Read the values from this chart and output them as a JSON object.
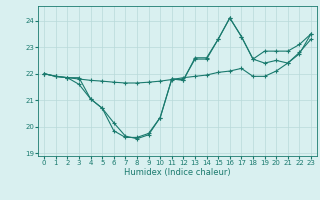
{
  "xlabel": "Humidex (Indice chaleur)",
  "x": [
    0,
    1,
    2,
    3,
    4,
    5,
    6,
    7,
    8,
    9,
    10,
    11,
    12,
    13,
    14,
    15,
    16,
    17,
    18,
    19,
    20,
    21,
    22,
    23
  ],
  "line1": [
    22.0,
    21.9,
    21.85,
    21.8,
    21.75,
    21.72,
    21.68,
    21.65,
    21.65,
    21.68,
    21.72,
    21.78,
    21.85,
    21.9,
    21.95,
    22.05,
    22.1,
    22.2,
    21.9,
    21.9,
    22.1,
    22.4,
    22.8,
    23.3
  ],
  "line2": [
    22.0,
    21.9,
    21.85,
    21.6,
    21.05,
    20.7,
    20.15,
    19.65,
    19.55,
    19.7,
    20.35,
    21.8,
    21.75,
    22.6,
    22.6,
    23.3,
    24.1,
    23.4,
    22.55,
    22.4,
    22.5,
    22.4,
    22.75,
    23.5
  ],
  "line3": [
    22.0,
    21.9,
    21.85,
    21.85,
    21.05,
    20.7,
    19.85,
    19.6,
    19.6,
    19.75,
    20.35,
    21.8,
    21.78,
    22.55,
    22.55,
    23.3,
    24.1,
    23.4,
    22.55,
    22.85,
    22.85,
    22.85,
    23.1,
    23.5
  ],
  "line_color": "#1a7a6e",
  "bg_color": "#d9f0f0",
  "grid_color": "#b8dada",
  "ylim": [
    18.9,
    24.55
  ],
  "xlim": [
    -0.5,
    23.5
  ],
  "yticks": [
    19,
    20,
    21,
    22,
    23,
    24
  ],
  "xticks": [
    0,
    1,
    2,
    3,
    4,
    5,
    6,
    7,
    8,
    9,
    10,
    11,
    12,
    13,
    14,
    15,
    16,
    17,
    18,
    19,
    20,
    21,
    22,
    23
  ]
}
